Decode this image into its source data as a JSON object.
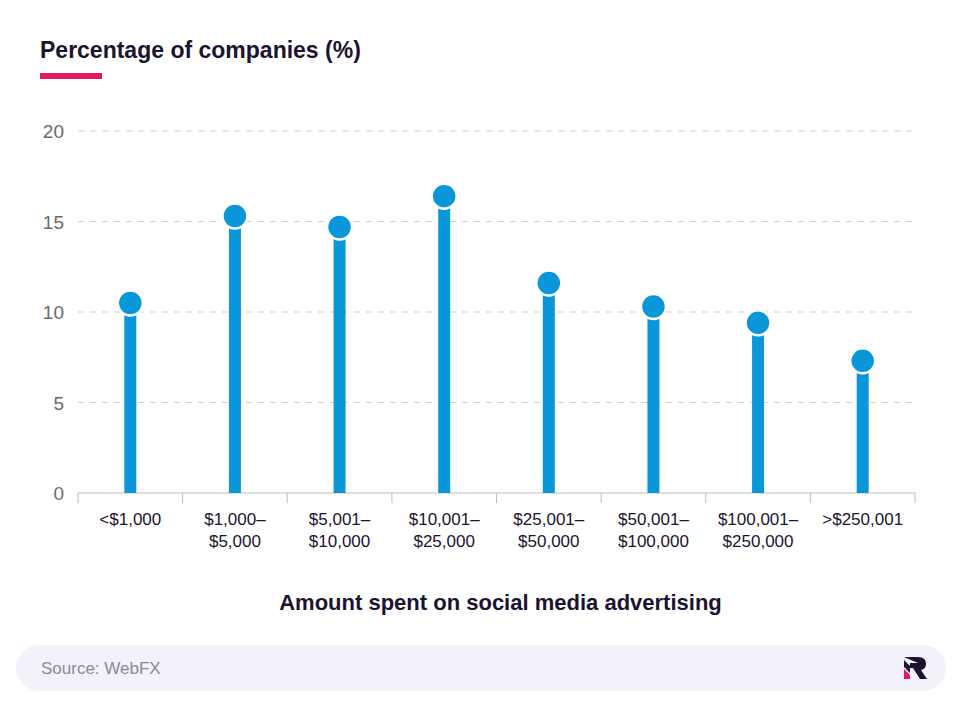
{
  "chart_data": {
    "type": "lollipop",
    "title": "Percentage of companies (%)",
    "x_label": "Amount spent on social media advertising",
    "source": "Source: WebFX",
    "categories": [
      "<$1,000",
      "$1,000–$5,000",
      "$5,001–$10,000",
      "$10,001–$25,000",
      "$25,001–$50,000",
      "$50,001–$100,000",
      "$100,001–$250,000",
      ">$250,001"
    ],
    "values": [
      10.5,
      15.3,
      14.7,
      16.4,
      11.6,
      10.3,
      9.4,
      7.3
    ],
    "color": "#0a97d9",
    "ylim": [
      0,
      20
    ],
    "yticks": [
      0,
      5,
      10,
      15,
      20
    ],
    "grid": true
  }
}
